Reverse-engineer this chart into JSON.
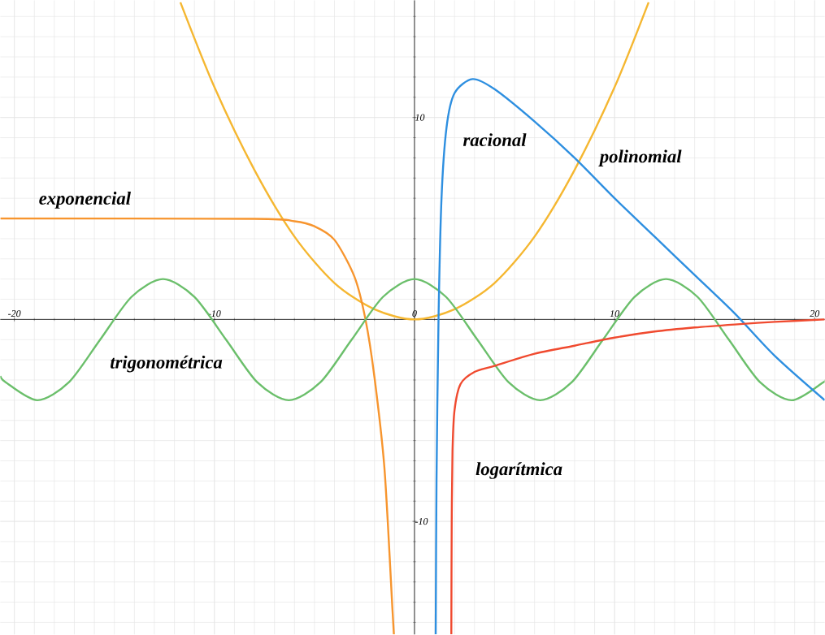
{
  "chart_data": {
    "type": "line",
    "xlim": [
      -20.7,
      20.5
    ],
    "ylim": [
      -15.6,
      15.8
    ],
    "xticks": [
      -20,
      -10,
      0,
      10,
      20
    ],
    "yticks": [
      -10,
      10
    ],
    "grid": true,
    "series": [
      {
        "name": "polinomial",
        "color": "#f5b731",
        "x": [
          -11.7,
          -10,
          -8,
          -6,
          -4,
          -2,
          0,
          2,
          4,
          6,
          8,
          10,
          11.7
        ],
        "values": [
          15.7,
          11.5,
          7.4,
          4.1,
          1.8,
          0.5,
          0,
          0.5,
          1.8,
          4.1,
          7.4,
          11.5,
          15.7
        ]
      },
      {
        "name": "exponencial",
        "color": "#f7952e",
        "x": [
          -20.7,
          -8,
          -6,
          -5,
          -4,
          -3,
          -2.45,
          -2,
          -1.5,
          -1.1,
          -1.03
        ],
        "values": [
          5,
          4.98,
          4.86,
          4.61,
          3.94,
          2.11,
          0,
          -2.87,
          -7.4,
          -14.4,
          -15.6
        ]
      },
      {
        "name": "trigonométrica",
        "color": "#6bbf6b",
        "x": [
          -20.7,
          -20.42,
          -18.85,
          -17.28,
          -15.71,
          -14.14,
          -12.57,
          -11.0,
          -9.42,
          -7.85,
          -6.28,
          -4.71,
          -3.14,
          -1.57,
          0,
          1.57,
          3.14,
          4.71,
          6.28,
          7.85,
          9.42,
          11.0,
          12.57,
          14.14,
          15.71,
          17.28,
          18.85,
          20.42,
          20.5
        ],
        "values": [
          -2.8,
          -3.12,
          -4,
          -3.12,
          -1,
          1.12,
          2,
          1.12,
          -1,
          -3.12,
          -4,
          -3.12,
          -1,
          1.12,
          2,
          1.12,
          -1,
          -3.12,
          -4,
          -3.12,
          -1,
          1.12,
          2,
          1.12,
          -1,
          -3.12,
          -4,
          -3.12,
          -3.03
        ]
      },
      {
        "name": "racional",
        "color": "#2e8fe0",
        "x": [
          1.06,
          1.1,
          1.2,
          1.35,
          1.6,
          2,
          2.9,
          4,
          6,
          8,
          10,
          12,
          14,
          16,
          18,
          20.5
        ],
        "values": [
          -15.6,
          -8,
          0,
          6,
          9.5,
          11.2,
          11.9,
          11.4,
          9.8,
          8.0,
          6.0,
          4.1,
          2.2,
          0.3,
          -1.8,
          -4.0
        ]
      },
      {
        "name": "logarítmica",
        "color": "#f04a2f",
        "x": [
          1.84,
          1.86,
          1.9,
          2.0,
          2.3,
          3,
          4,
          6,
          8,
          10,
          12,
          14,
          16,
          18,
          20.5
        ],
        "values": [
          -15.6,
          -10,
          -6.5,
          -4.5,
          -3.2,
          -2.6,
          -2.3,
          -1.7,
          -1.3,
          -0.9,
          -0.6,
          -0.4,
          -0.25,
          -0.12,
          0
        ]
      }
    ]
  }
}
